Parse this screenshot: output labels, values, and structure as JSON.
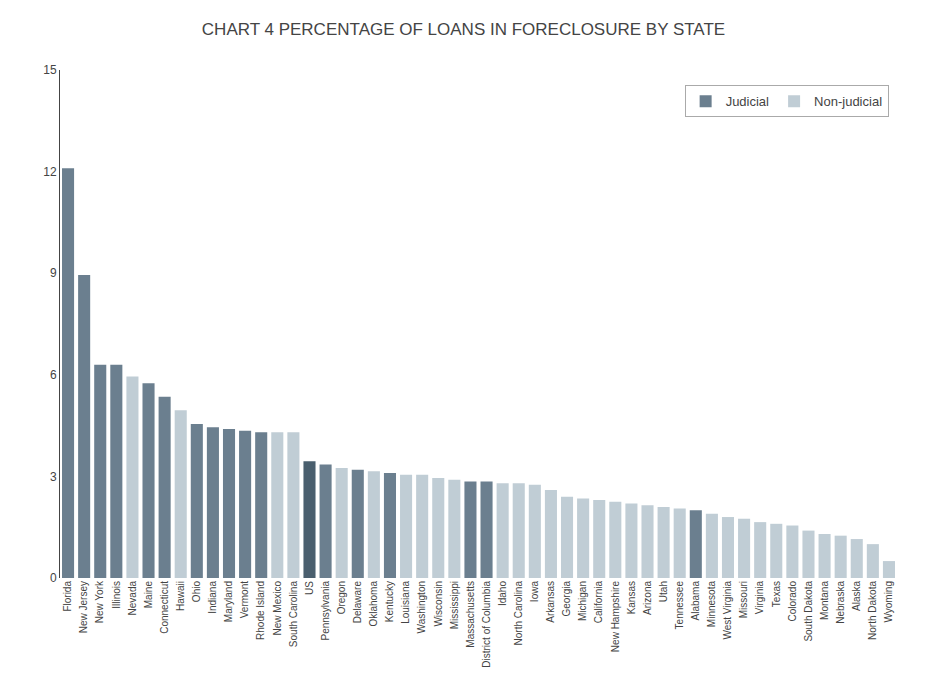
{
  "chart_data": {
    "type": "bar",
    "title": "CHART 4 PERCENTAGE OF LOANS IN FORECLOSURE BY STATE",
    "categories": [
      "Florida",
      "New Jersey",
      "New York",
      "Illinois",
      "Nevada",
      "Maine",
      "Connecticut",
      "Hawaii",
      "Ohio",
      "Indiana",
      "Maryland",
      "Vermont",
      "Rhode Island",
      "New Mexico",
      "South Carolina",
      "US",
      "Pennsylvania",
      "Oregon",
      "Delaware",
      "Oklahoma",
      "Kentucky",
      "Louisiana",
      "Washington",
      "Wisconsin",
      "Mississippi",
      "Massachusetts",
      "District of Columbia",
      "Idaho",
      "North Carolina",
      "Iowa",
      "Arkansas",
      "Georgia",
      "Michigan",
      "California",
      "New Hampshire",
      "Kansas",
      "Arizona",
      "Utah",
      "Tennessee",
      "Alabama",
      "Minnesota",
      "West Virginia",
      "Missouri",
      "Virginia",
      "Texas",
      "Colorado",
      "South Dakota",
      "Montana",
      "Nebraska",
      "Alaska",
      "North Dakota",
      "Wyoming"
    ],
    "series": [
      {
        "name": "Judicial",
        "color": "#6b7f8f",
        "values": [
          12.1,
          8.95,
          6.3,
          6.3,
          null,
          5.75,
          5.35,
          null,
          4.55,
          4.45,
          4.4,
          4.35,
          4.3,
          null,
          null,
          null,
          3.35,
          null,
          3.2,
          null,
          3.1,
          null,
          null,
          null,
          null,
          2.85,
          2.85,
          null,
          null,
          null,
          null,
          null,
          null,
          null,
          null,
          null,
          null,
          null,
          null,
          2.0,
          null,
          null,
          null,
          null,
          null,
          null,
          null,
          null,
          null,
          null,
          null,
          null
        ]
      },
      {
        "name": "Non-judicial",
        "color": "#c0cdd5",
        "values": [
          null,
          null,
          null,
          null,
          5.95,
          null,
          null,
          4.95,
          null,
          null,
          null,
          null,
          null,
          4.3,
          4.3,
          null,
          null,
          3.25,
          null,
          3.15,
          null,
          3.05,
          3.05,
          2.95,
          2.9,
          null,
          null,
          2.8,
          2.8,
          2.75,
          2.6,
          2.4,
          2.35,
          2.3,
          2.25,
          2.2,
          2.15,
          2.1,
          2.05,
          null,
          1.9,
          1.8,
          1.75,
          1.65,
          1.6,
          1.55,
          1.4,
          1.3,
          1.25,
          1.15,
          1.0,
          0.5
        ]
      },
      {
        "color": "#4a5f6e",
        "values": [
          null,
          null,
          null,
          null,
          null,
          null,
          null,
          null,
          null,
          null,
          null,
          null,
          null,
          null,
          null,
          3.45,
          null,
          null,
          null,
          null,
          null,
          null,
          null,
          null,
          null,
          null,
          null,
          null,
          null,
          null,
          null,
          null,
          null,
          null,
          null,
          null,
          null,
          null,
          null,
          null,
          null,
          null,
          null,
          null,
          null,
          null,
          null,
          null,
          null,
          null,
          null,
          null
        ]
      }
    ],
    "ylim": [
      0,
      15
    ],
    "yticks": [
      0,
      3,
      6,
      9,
      12,
      15
    ],
    "grid": false,
    "legend": "upper right"
  }
}
